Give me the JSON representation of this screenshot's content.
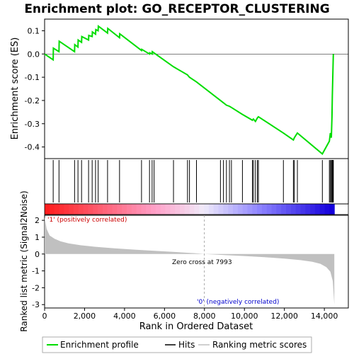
{
  "title": "Enrichment plot: GO_RECEPTOR_CLUSTERING",
  "colors": {
    "es_line": "#00dd00",
    "hit": "#000000",
    "metric_fill": "#c0c0c0",
    "pos_label": "#cc0000",
    "neg_label": "#0000cc",
    "zero_line": "#aaaaaa"
  },
  "chart_data": [
    {
      "type": "line",
      "name": "enrichment-profile",
      "ylabel": "Enrichment score (ES)",
      "xlim": [
        0,
        15200
      ],
      "ylim": [
        -0.45,
        0.15
      ],
      "y_ticks": [
        0.1,
        0.0,
        -0.1,
        -0.2,
        -0.3,
        -0.4
      ],
      "y_tick_labels": [
        "0.1",
        "0.0",
        "-0.1",
        "-0.2",
        "-0.3",
        "-0.4"
      ],
      "x": [
        0,
        430,
        440,
        720,
        730,
        1500,
        1510,
        1670,
        1680,
        1850,
        1860,
        2200,
        2210,
        2380,
        2390,
        2550,
        2560,
        2680,
        2690,
        3150,
        3160,
        3750,
        3760,
        4850,
        4860,
        5250,
        5260,
        5380,
        5390,
        6450,
        7150,
        7250,
        7600,
        8800,
        8950,
        9100,
        9250,
        9350,
        9900,
        10400,
        10450,
        10550,
        10650,
        10700,
        11950,
        12450,
        12500,
        12650,
        13900,
        14250,
        14300,
        14350,
        14380,
        14400,
        14450
      ],
      "y": [
        0.0,
        -0.025,
        0.025,
        0.01,
        0.055,
        0.01,
        0.04,
        0.03,
        0.06,
        0.05,
        0.075,
        0.06,
        0.08,
        0.075,
        0.095,
        0.085,
        0.105,
        0.1,
        0.12,
        0.09,
        0.11,
        0.07,
        0.087,
        0.015,
        0.02,
        0.0,
        0.005,
        0.0,
        0.01,
        -0.055,
        -0.09,
        -0.1,
        -0.12,
        -0.2,
        -0.21,
        -0.22,
        -0.225,
        -0.23,
        -0.26,
        -0.285,
        -0.28,
        -0.29,
        -0.275,
        -0.27,
        -0.34,
        -0.37,
        -0.36,
        -0.34,
        -0.43,
        -0.375,
        -0.34,
        -0.36,
        -0.27,
        -0.18,
        0.0
      ]
    },
    {
      "type": "scatter",
      "name": "hits",
      "x": [
        430,
        720,
        1500,
        1670,
        1850,
        2200,
        2380,
        2550,
        2680,
        3150,
        3750,
        4850,
        5250,
        5380,
        5480,
        6450,
        7150,
        7250,
        7600,
        8800,
        8950,
        9100,
        9250,
        9350,
        9900,
        10400,
        10450,
        10550,
        10650,
        10700,
        11950,
        12450,
        12500,
        12650,
        13900,
        14250,
        14300,
        14350,
        14380,
        14400,
        14420,
        14440,
        14450
      ]
    },
    {
      "type": "area",
      "name": "ranked-list-metric",
      "ylabel": "Ranked list metric (Signal2Noise)",
      "xlabel": "Rank in Ordered Dataset",
      "xlim": [
        0,
        15200
      ],
      "ylim": [
        -3.2,
        2.3
      ],
      "x_ticks": [
        0,
        2000,
        4000,
        6000,
        8000,
        10000,
        12000,
        14000
      ],
      "x_tick_labels": [
        "0",
        "2,000",
        "4,000",
        "6,000",
        "8,000",
        "10,000",
        "12,000",
        "14,000"
      ],
      "y_ticks": [
        2,
        1,
        0,
        -1,
        -2,
        -3
      ],
      "y_tick_labels": [
        "2",
        "1",
        "0",
        "-1",
        "-2",
        "-3"
      ],
      "x": [
        0,
        100,
        250,
        500,
        800,
        1200,
        1800,
        2500,
        3500,
        4500,
        5500,
        6500,
        7500,
        7993,
        9000,
        10000,
        11000,
        12000,
        12800,
        13400,
        13800,
        14100,
        14300,
        14420,
        14500
      ],
      "y": [
        2.2,
        1.5,
        1.1,
        0.9,
        0.75,
        0.63,
        0.52,
        0.43,
        0.34,
        0.26,
        0.19,
        0.12,
        0.05,
        0.0,
        -0.06,
        -0.12,
        -0.19,
        -0.27,
        -0.36,
        -0.46,
        -0.58,
        -0.78,
        -1.05,
        -1.6,
        -3.0
      ]
    }
  ],
  "annotations": {
    "pos_label": "'1' (positively correlated)",
    "neg_label": "'0' (negatively correlated)",
    "zero_cross": "Zero cross at 7993"
  },
  "legend": [
    {
      "label": "Enrichment profile",
      "color": "#00dd00"
    },
    {
      "label": "Hits",
      "color": "#000000"
    },
    {
      "label": "Ranking metric scores",
      "color": "#c0c0c0"
    }
  ]
}
